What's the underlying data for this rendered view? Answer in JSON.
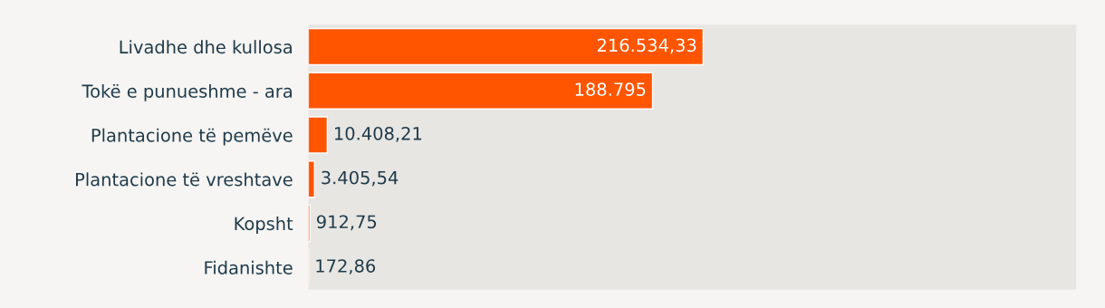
{
  "chart_data": {
    "type": "bar",
    "orientation": "horizontal",
    "categories": [
      "Livadhe dhe kullosa",
      "Tokë e punueshme - ara",
      "Plantacione të pemëve",
      "Plantacione të vreshtave",
      "Kopsht",
      "Fidanishte"
    ],
    "values": [
      216534.33,
      188795,
      10408.21,
      3405.54,
      912.75,
      172.86
    ],
    "value_labels": [
      "216.534,33",
      "188.795",
      "10.408,21",
      "3.405,54",
      "912,75",
      "172,86"
    ],
    "color": "#ff5500",
    "grid": false,
    "legend": false
  }
}
